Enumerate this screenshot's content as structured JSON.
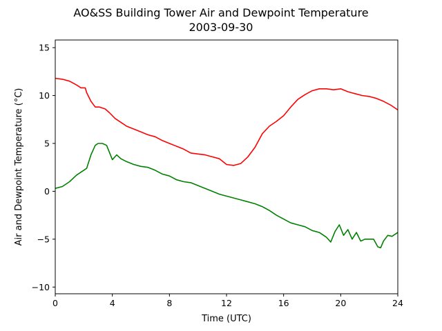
{
  "chart_data": {
    "type": "line",
    "title": "AO&SS Building Tower Air and Dewpoint Temperature",
    "subtitle": "2003-09-30",
    "xlabel": "Time (UTC)",
    "ylabel": "Air and Dewpoint Temperature (°C)",
    "xlim": [
      0,
      24
    ],
    "ylim": [
      -10.7,
      15.8
    ],
    "xticks": [
      0,
      4,
      8,
      12,
      16,
      20,
      24
    ],
    "yticks": [
      -10,
      -5,
      0,
      5,
      10,
      15
    ],
    "grid": false,
    "legend": "none",
    "series": [
      {
        "color": "#ff0000",
        "x": [
          0,
          0.5,
          1,
          1.5,
          1.8,
          2.1,
          2.2,
          2.5,
          2.8,
          3.1,
          3.5,
          3.8,
          4.2,
          4.6,
          5.0,
          5.5,
          6.0,
          6.5,
          7.0,
          7.5,
          8.0,
          8.5,
          9.0,
          9.5,
          10.0,
          10.5,
          11.0,
          11.5,
          12.0,
          12.5,
          13.0,
          13.5,
          14.0,
          14.5,
          15.0,
          15.5,
          16.0,
          16.5,
          17.0,
          17.5,
          18.0,
          18.5,
          19.0,
          19.5,
          20.0,
          20.5,
          21.0,
          21.5,
          22.0,
          22.5,
          23.0,
          23.5,
          24.0
        ],
        "values": [
          11.8,
          11.7,
          11.5,
          11.1,
          10.8,
          10.8,
          10.3,
          9.4,
          8.8,
          8.8,
          8.6,
          8.2,
          7.6,
          7.2,
          6.8,
          6.5,
          6.2,
          5.9,
          5.7,
          5.3,
          5.0,
          4.7,
          4.4,
          4.0,
          3.9,
          3.8,
          3.6,
          3.4,
          2.8,
          2.7,
          2.9,
          3.6,
          4.6,
          6.0,
          6.8,
          7.3,
          7.9,
          8.8,
          9.6,
          10.1,
          10.5,
          10.7,
          10.7,
          10.6,
          10.7,
          10.4,
          10.2,
          10.0,
          9.9,
          9.7,
          9.4,
          9.0,
          8.5
        ]
      },
      {
        "color": "#008000",
        "x": [
          0,
          0.5,
          1.0,
          1.5,
          2.0,
          2.2,
          2.5,
          2.8,
          3.0,
          3.3,
          3.6,
          4.0,
          4.3,
          4.6,
          5.0,
          5.5,
          6.0,
          6.5,
          7.0,
          7.5,
          8.0,
          8.5,
          9.0,
          9.5,
          10.0,
          10.5,
          11.0,
          11.5,
          12.0,
          12.5,
          13.0,
          13.5,
          14.0,
          14.5,
          15.0,
          15.5,
          16.0,
          16.5,
          17.0,
          17.5,
          18.0,
          18.5,
          19.0,
          19.3,
          19.6,
          19.9,
          20.2,
          20.5,
          20.8,
          21.1,
          21.4,
          21.7,
          22.0,
          22.3,
          22.6,
          22.8,
          23.0,
          23.3,
          23.6,
          24.0
        ],
        "values": [
          0.3,
          0.5,
          1.0,
          1.7,
          2.2,
          2.4,
          3.8,
          4.8,
          5.0,
          5.0,
          4.8,
          3.3,
          3.8,
          3.4,
          3.1,
          2.8,
          2.6,
          2.5,
          2.2,
          1.8,
          1.6,
          1.2,
          1.0,
          0.9,
          0.6,
          0.3,
          0.0,
          -0.3,
          -0.5,
          -0.7,
          -0.9,
          -1.1,
          -1.3,
          -1.6,
          -2.0,
          -2.5,
          -2.9,
          -3.3,
          -3.5,
          -3.7,
          -4.1,
          -4.3,
          -4.8,
          -5.3,
          -4.2,
          -3.5,
          -4.6,
          -4.0,
          -5.0,
          -4.3,
          -5.2,
          -5.0,
          -5.0,
          -5.0,
          -5.8,
          -5.9,
          -5.2,
          -4.6,
          -4.7,
          -4.3
        ]
      }
    ]
  }
}
